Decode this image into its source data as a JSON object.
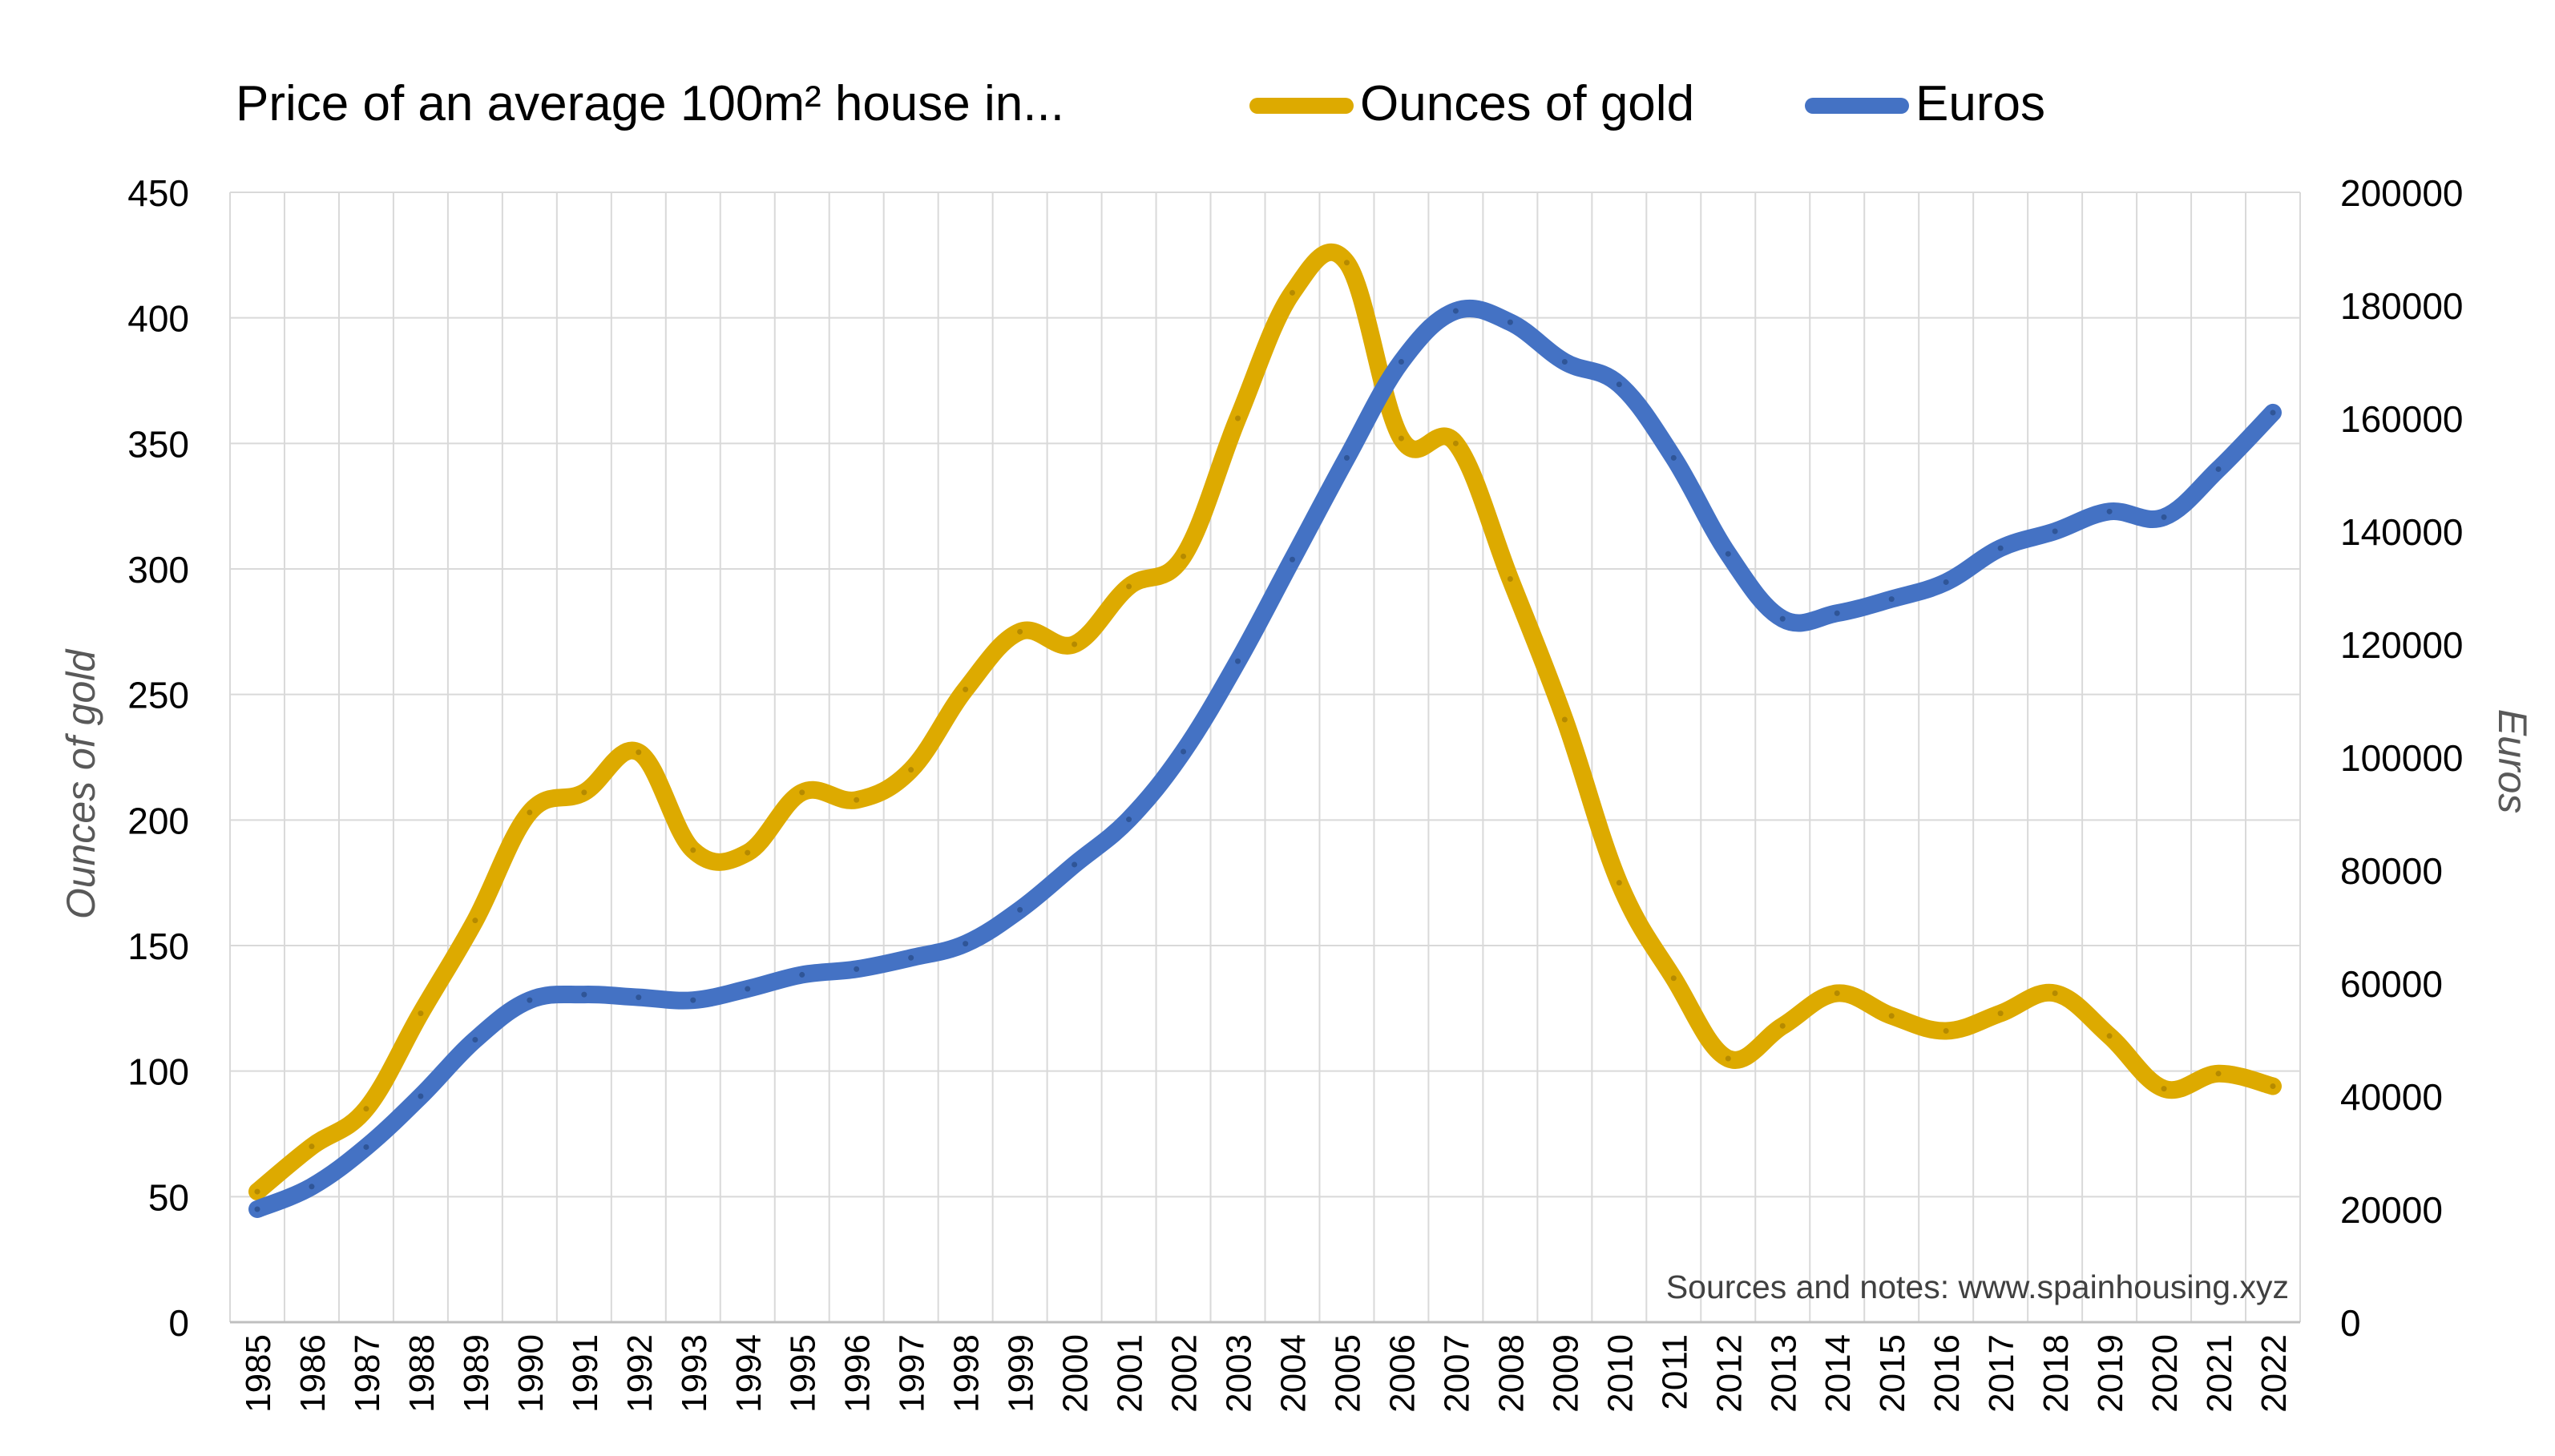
{
  "chart_data": {
    "type": "line",
    "title": "Price of an average 100m² house in...",
    "legend_position": "top",
    "note": "Sources and notes: www.spainhousing.xyz",
    "grid": true,
    "x": [
      "1985",
      "1986",
      "1987",
      "1988",
      "1989",
      "1990",
      "1991",
      "1992",
      "1993",
      "1994",
      "1995",
      "1996",
      "1997",
      "1998",
      "1999",
      "2000",
      "2001",
      "2002",
      "2003",
      "2004",
      "2005",
      "2006",
      "2007",
      "2008",
      "2009",
      "2010",
      "2011",
      "2012",
      "2013",
      "2014",
      "2015",
      "2016",
      "2017",
      "2018",
      "2019",
      "2020",
      "2021",
      "2022"
    ],
    "left_axis": {
      "label": "Ounces of gold",
      "ylim": [
        0,
        450
      ],
      "ticks": [
        "0",
        "50",
        "100",
        "150",
        "200",
        "250",
        "300",
        "350",
        "400",
        "450"
      ]
    },
    "right_axis": {
      "label": "Euros",
      "ylim": [
        0,
        200000
      ],
      "ticks": [
        "0",
        "20000",
        "40000",
        "60000",
        "80000",
        "100000",
        "120000",
        "140000",
        "160000",
        "180000",
        "200000"
      ]
    },
    "series": [
      {
        "name": "Ounces of gold",
        "axis": "left",
        "color": "#DDAA00",
        "values": [
          52,
          70,
          85,
          123,
          160,
          203,
          211,
          227,
          188,
          187,
          211,
          208,
          220,
          252,
          275,
          270,
          293,
          305,
          360,
          410,
          422,
          352,
          350,
          296,
          240,
          175,
          137,
          105,
          118,
          131,
          122,
          116,
          123,
          131,
          114,
          93,
          99,
          94
        ]
      },
      {
        "name": "Euros",
        "axis": "right",
        "color": "#4472C4",
        "values": [
          20000,
          24000,
          31000,
          40000,
          50000,
          57000,
          58000,
          57500,
          57000,
          59000,
          61500,
          62500,
          64500,
          67000,
          73000,
          81000,
          89000,
          101000,
          117000,
          135000,
          153000,
          170000,
          179000,
          177000,
          170000,
          166000,
          153000,
          136000,
          124500,
          125500,
          128000,
          131000,
          137000,
          140000,
          143500,
          142500,
          151000,
          161000
        ]
      }
    ]
  }
}
